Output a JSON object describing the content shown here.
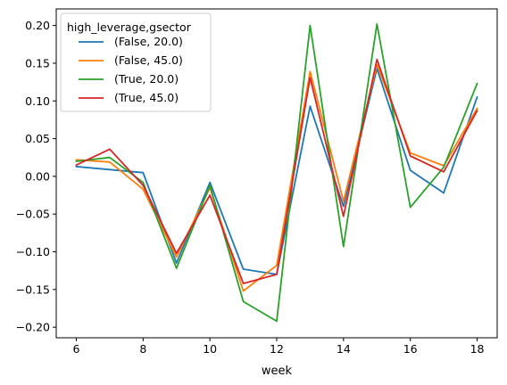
{
  "chart_data": {
    "type": "line",
    "xlabel": "week",
    "ylabel": "",
    "xlim": [
      5.4,
      18.6
    ],
    "ylim": [
      -0.214,
      0.222
    ],
    "xticks": [
      6,
      8,
      10,
      12,
      14,
      16,
      18
    ],
    "yticks": [
      0.2,
      0.15,
      0.1,
      0.05,
      0.0,
      -0.05,
      -0.1,
      -0.15,
      -0.2
    ],
    "ytick_labels": [
      "0.20",
      "0.15",
      "0.10",
      "0.05",
      "0.00",
      "−0.05",
      "−0.10",
      "−0.15",
      "−0.20"
    ],
    "grid": false,
    "legend": {
      "title": "high_leverage,gsector",
      "placement": "top-left"
    },
    "x": [
      6,
      7,
      8,
      9,
      10,
      11,
      12,
      13,
      14,
      15,
      16,
      17,
      18
    ],
    "series": [
      {
        "name": "(False, 20.0)",
        "color": "#1f77b4",
        "values": [
          0.013,
          0.009,
          0.005,
          -0.115,
          -0.008,
          -0.123,
          -0.13,
          0.093,
          -0.04,
          0.143,
          0.008,
          -0.022,
          0.105
        ]
      },
      {
        "name": "(False, 45.0)",
        "color": "#ff7f0e",
        "values": [
          0.022,
          0.019,
          -0.017,
          -0.107,
          -0.015,
          -0.152,
          -0.118,
          0.139,
          -0.033,
          0.148,
          0.031,
          0.014,
          0.09
        ]
      },
      {
        "name": "(True, 20.0)",
        "color": "#2ca02c",
        "values": [
          0.02,
          0.025,
          -0.008,
          -0.122,
          -0.012,
          -0.166,
          -0.192,
          0.2,
          -0.093,
          0.202,
          -0.041,
          0.012,
          0.123
        ]
      },
      {
        "name": "(True, 45.0)",
        "color": "#d62728",
        "values": [
          0.015,
          0.036,
          -0.012,
          -0.102,
          -0.025,
          -0.142,
          -0.13,
          0.131,
          -0.053,
          0.155,
          0.027,
          0.006,
          0.087
        ]
      }
    ]
  }
}
